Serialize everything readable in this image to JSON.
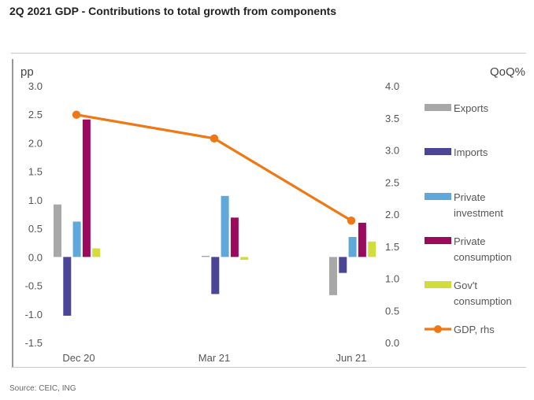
{
  "page": {
    "title": "2Q 2021 GDP - Contributions to total growth from components",
    "source": "Source: CEIC, ING"
  },
  "chart_data": {
    "type": "bar",
    "title": "2Q 2021 GDP - Contributions to total growth from components",
    "categories": [
      "Dec 20",
      "Mar 21",
      "Jun 21"
    ],
    "y_left": {
      "label": "pp",
      "min": -1.5,
      "max": 3.0,
      "ticks": [
        "-1.5",
        "-1.0",
        "-0.5",
        "0.0",
        "0.5",
        "1.0",
        "1.5",
        "2.0",
        "2.5",
        "3.0"
      ]
    },
    "y_right": {
      "label": "QoQ%",
      "min": 0.0,
      "max": 4.0,
      "ticks": [
        "0.0",
        "0.5",
        "1.0",
        "1.5",
        "2.0",
        "2.5",
        "3.0",
        "3.5",
        "4.0"
      ]
    },
    "series": [
      {
        "name": "Exports",
        "type": "bar",
        "color": "#a8a8a8",
        "values": [
          0.92,
          0.02,
          -0.67
        ]
      },
      {
        "name": "Imports",
        "type": "bar",
        "color": "#4b4596",
        "values": [
          -1.03,
          -0.65,
          -0.28
        ]
      },
      {
        "name": "Private investment",
        "name_lines": [
          "Private",
          "investment"
        ],
        "type": "bar",
        "color": "#5ea8dc",
        "values": [
          0.62,
          1.07,
          0.35
        ]
      },
      {
        "name": "Private consumption",
        "name_lines": [
          "Private",
          "consumption"
        ],
        "type": "bar",
        "color": "#9c0a5e",
        "values": [
          2.41,
          0.69,
          0.6
        ]
      },
      {
        "name": "Gov't consumption",
        "name_lines": [
          "Gov't",
          "consumption"
        ],
        "type": "bar",
        "color": "#d2dc3c",
        "values": [
          0.15,
          -0.05,
          0.27
        ]
      },
      {
        "name": "GDP, rhs",
        "type": "line",
        "axis": "right",
        "color": "#f07814",
        "values": [
          3.55,
          3.18,
          1.9
        ]
      }
    ],
    "grid": false,
    "legend_position": "right"
  }
}
